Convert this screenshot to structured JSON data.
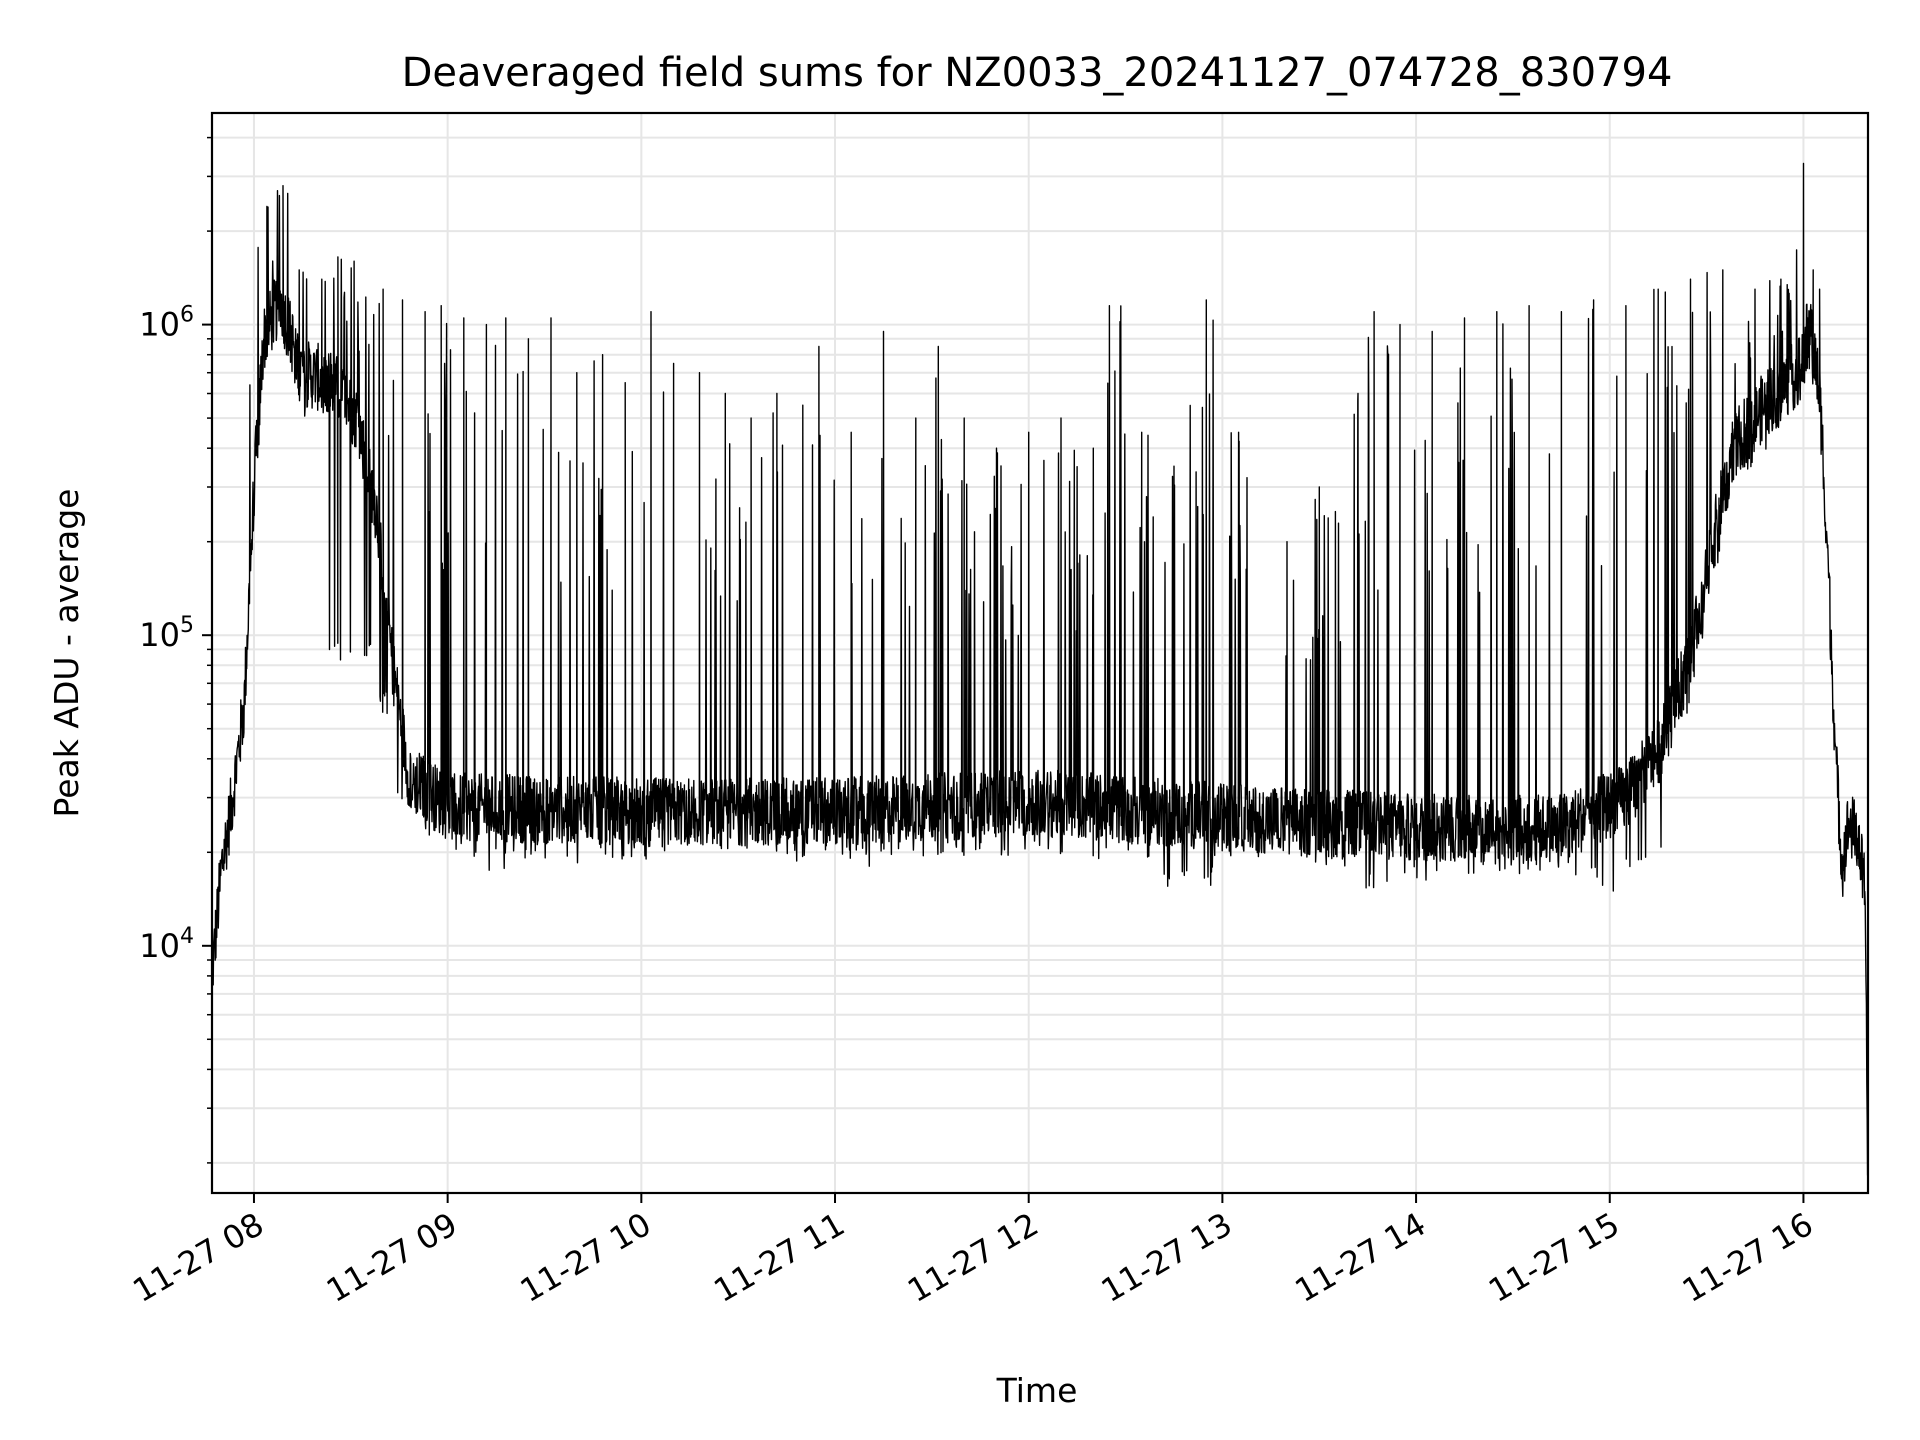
{
  "chart_data": {
    "type": "line",
    "title": "Deaveraged field sums for NZ0033_20241127_074728_830794",
    "xlabel": "Time",
    "ylabel": "Peak ADU - average",
    "yscale": "log",
    "ylim": [
      1600,
      4800000
    ],
    "xlim": [
      "2024-11-27 07:47",
      "2024-11-27 16:20"
    ],
    "grid": true,
    "line_color": "#000000",
    "grid_color": "#e6e6e6",
    "x_ticks": [
      {
        "value": "2024-11-27 08:00",
        "label": "11-27 08"
      },
      {
        "value": "2024-11-27 09:00",
        "label": "11-27 09"
      },
      {
        "value": "2024-11-27 10:00",
        "label": "11-27 10"
      },
      {
        "value": "2024-11-27 11:00",
        "label": "11-27 11"
      },
      {
        "value": "2024-11-27 12:00",
        "label": "11-27 12"
      },
      {
        "value": "2024-11-27 13:00",
        "label": "11-27 13"
      },
      {
        "value": "2024-11-27 14:00",
        "label": "11-27 14"
      },
      {
        "value": "2024-11-27 15:00",
        "label": "11-27 15"
      },
      {
        "value": "2024-11-27 16:00",
        "label": "11-27 16"
      }
    ],
    "y_ticks": [
      {
        "value": 10000,
        "base": "10",
        "exp": "4"
      },
      {
        "value": 100000,
        "base": "10",
        "exp": "5"
      },
      {
        "value": 1000000,
        "base": "10",
        "exp": "6"
      }
    ],
    "series": [
      {
        "baseline": [
          [
            "2024-11-27 07:47",
            8000
          ],
          [
            "2024-11-27 07:50",
            18000
          ],
          [
            "2024-11-27 07:53",
            28000
          ],
          [
            "2024-11-27 07:57",
            60000
          ],
          [
            "2024-11-27 08:00",
            300000
          ],
          [
            "2024-11-27 08:03",
            900000
          ],
          [
            "2024-11-27 08:08",
            1200000
          ],
          [
            "2024-11-27 08:15",
            700000
          ],
          [
            "2024-11-27 08:25",
            650000
          ],
          [
            "2024-11-27 08:32",
            500000
          ],
          [
            "2024-11-27 08:38",
            250000
          ],
          [
            "2024-11-27 08:43",
            80000
          ],
          [
            "2024-11-27 08:48",
            35000
          ],
          [
            "2024-11-27 09:00",
            28000
          ],
          [
            "2024-11-27 10:00",
            27000
          ],
          [
            "2024-11-27 11:00",
            27000
          ],
          [
            "2024-11-27 12:00",
            29000
          ],
          [
            "2024-11-27 13:00",
            26000
          ],
          [
            "2024-11-27 14:00",
            24000
          ],
          [
            "2024-11-27 14:45",
            24000
          ],
          [
            "2024-11-27 15:05",
            30000
          ],
          [
            "2024-11-27 15:15",
            42000
          ],
          [
            "2024-11-27 15:25",
            85000
          ],
          [
            "2024-11-27 15:32",
            200000
          ],
          [
            "2024-11-27 15:38",
            400000
          ],
          [
            "2024-11-27 15:48",
            550000
          ],
          [
            "2024-11-27 15:58",
            700000
          ],
          [
            "2024-11-27 16:02",
            1000000
          ],
          [
            "2024-11-27 16:05",
            600000
          ],
          [
            "2024-11-27 16:07",
            250000
          ],
          [
            "2024-11-27 16:10",
            40000
          ],
          [
            "2024-11-27 16:12",
            18000
          ],
          [
            "2024-11-27 16:14",
            25000
          ],
          [
            "2024-11-27 16:17",
            22000
          ],
          [
            "2024-11-27 16:19",
            15000
          ],
          [
            "2024-11-27 16:20",
            1800
          ]
        ],
        "spikes": [
          [
            "2024-11-27 08:04",
            2400000
          ],
          [
            "2024-11-27 08:09",
            2800000
          ],
          [
            "2024-11-27 08:14",
            1500000
          ],
          [
            "2024-11-27 08:21",
            1400000
          ],
          [
            "2024-11-27 08:26",
            1650000
          ],
          [
            "2024-11-27 08:31",
            1600000
          ],
          [
            "2024-11-27 08:40",
            1300000
          ],
          [
            "2024-11-27 08:46",
            1200000
          ],
          [
            "2024-11-27 08:53",
            1100000
          ],
          [
            "2024-11-27 08:58",
            1150000
          ],
          [
            "2024-11-27 09:05",
            1050000
          ],
          [
            "2024-11-27 09:12",
            1000000
          ],
          [
            "2024-11-27 09:18",
            1050000
          ],
          [
            "2024-11-27 09:25",
            900000
          ],
          [
            "2024-11-27 09:32",
            1050000
          ],
          [
            "2024-11-27 09:40",
            700000
          ],
          [
            "2024-11-27 09:48",
            800000
          ],
          [
            "2024-11-27 09:55",
            650000
          ],
          [
            "2024-11-27 10:03",
            1100000
          ],
          [
            "2024-11-27 10:10",
            750000
          ],
          [
            "2024-11-27 10:18",
            700000
          ],
          [
            "2024-11-27 10:26",
            600000
          ],
          [
            "2024-11-27 10:34",
            500000
          ],
          [
            "2024-11-27 10:42",
            600000
          ],
          [
            "2024-11-27 10:50",
            550000
          ],
          [
            "2024-11-27 10:55",
            850000
          ],
          [
            "2024-11-27 11:05",
            450000
          ],
          [
            "2024-11-27 11:15",
            950000
          ],
          [
            "2024-11-27 11:25",
            500000
          ],
          [
            "2024-11-27 11:32",
            850000
          ],
          [
            "2024-11-27 11:40",
            500000
          ],
          [
            "2024-11-27 11:50",
            400000
          ],
          [
            "2024-11-27 12:00",
            450000
          ],
          [
            "2024-11-27 12:10",
            500000
          ],
          [
            "2024-11-27 12:20",
            400000
          ],
          [
            "2024-11-27 12:25",
            1150000
          ],
          [
            "2024-11-27 12:35",
            450000
          ],
          [
            "2024-11-27 12:45",
            350000
          ],
          [
            "2024-11-27 12:55",
            1200000
          ],
          [
            "2024-11-27 13:05",
            450000
          ],
          [
            "2024-11-27 13:20",
            200000
          ],
          [
            "2024-11-27 13:30",
            300000
          ],
          [
            "2024-11-27 13:35",
            250000
          ],
          [
            "2024-11-27 13:42",
            600000
          ],
          [
            "2024-11-27 13:47",
            1100000
          ],
          [
            "2024-11-27 13:55",
            1000000
          ],
          [
            "2024-11-27 14:05",
            950000
          ],
          [
            "2024-11-27 14:15",
            1050000
          ],
          [
            "2024-11-27 14:25",
            1100000
          ],
          [
            "2024-11-27 14:35",
            1150000
          ],
          [
            "2024-11-27 14:45",
            1100000
          ],
          [
            "2024-11-27 14:55",
            1200000
          ],
          [
            "2024-11-27 15:05",
            1150000
          ],
          [
            "2024-11-27 15:15",
            1300000
          ],
          [
            "2024-11-27 15:25",
            1400000
          ],
          [
            "2024-11-27 15:35",
            1500000
          ],
          [
            "2024-11-27 15:45",
            1300000
          ],
          [
            "2024-11-27 15:53",
            1400000
          ],
          [
            "2024-11-27 16:00",
            3300000
          ],
          [
            "2024-11-27 16:03",
            1500000
          ],
          [
            "2024-11-27 16:05",
            1300000
          ]
        ],
        "troughs": [
          [
            "2024-11-27 08:35",
            80000
          ],
          [
            "2024-11-27 08:40",
            55000
          ],
          [
            "2024-11-27 08:45",
            28000
          ],
          [
            "2024-11-27 09:00",
            20000
          ],
          [
            "2024-11-27 09:15",
            17500
          ],
          [
            "2024-11-27 09:30",
            18500
          ],
          [
            "2024-11-27 10:00",
            19000
          ],
          [
            "2024-11-27 10:30",
            20000
          ],
          [
            "2024-11-27 11:00",
            17500
          ],
          [
            "2024-11-27 11:30",
            19000
          ],
          [
            "2024-11-27 12:00",
            18500
          ],
          [
            "2024-11-27 12:30",
            19000
          ],
          [
            "2024-11-27 12:45",
            15500
          ],
          [
            "2024-11-27 13:15",
            19000
          ],
          [
            "2024-11-27 13:55",
            15000
          ],
          [
            "2024-11-27 14:30",
            17000
          ],
          [
            "2024-11-27 15:00",
            15000
          ],
          [
            "2024-11-27 15:10",
            18000
          ]
        ]
      }
    ]
  }
}
